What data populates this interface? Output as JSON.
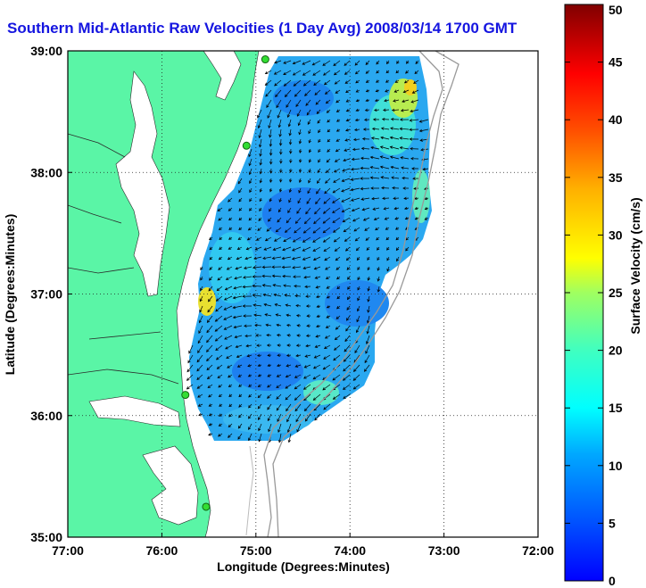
{
  "title": "Southern Mid-Atlantic Raw Velocities (1 Day Avg) 2008/03/14 1700 GMT",
  "xlabel": "Longitude (Degrees:Minutes)",
  "ylabel": "Latitude (Degrees:Minutes)",
  "colorbar_label": "Surface Velocity (cm/s)",
  "x_ticks": [
    "77:00",
    "76:00",
    "75:00",
    "74:00",
    "73:00",
    "72:00"
  ],
  "y_ticks": [
    "39:00",
    "38:00",
    "37:00",
    "36:00",
    "35:00"
  ],
  "colorbar_ticks": [
    "0",
    "5",
    "10",
    "15",
    "20",
    "25",
    "30",
    "35",
    "40",
    "45",
    "50"
  ],
  "colors": {
    "land": "#5af5a6",
    "title": "#1515e0",
    "arrows": "#000000",
    "station": "#33dd33"
  },
  "chart_data": {
    "type": "heatmap",
    "title": "Southern Mid-Atlantic Raw Velocities (1 Day Avg) 2008/03/14 1700 GMT",
    "xlabel": "Longitude (Degrees:Minutes)",
    "ylabel": "Latitude (Degrees:Minutes)",
    "xlim": [
      -77,
      -72
    ],
    "ylim": [
      35,
      39
    ],
    "grid": true,
    "colorbar": {
      "label": "Surface Velocity (cm/s)",
      "range": [
        0,
        50
      ],
      "colormap": "jet"
    },
    "stations": [
      {
        "lon": -74.9,
        "lat": 38.93
      },
      {
        "lon": -75.1,
        "lat": 38.22
      },
      {
        "lon": -75.75,
        "lat": 36.17
      },
      {
        "lon": -75.53,
        "lat": 35.25
      }
    ]
  }
}
